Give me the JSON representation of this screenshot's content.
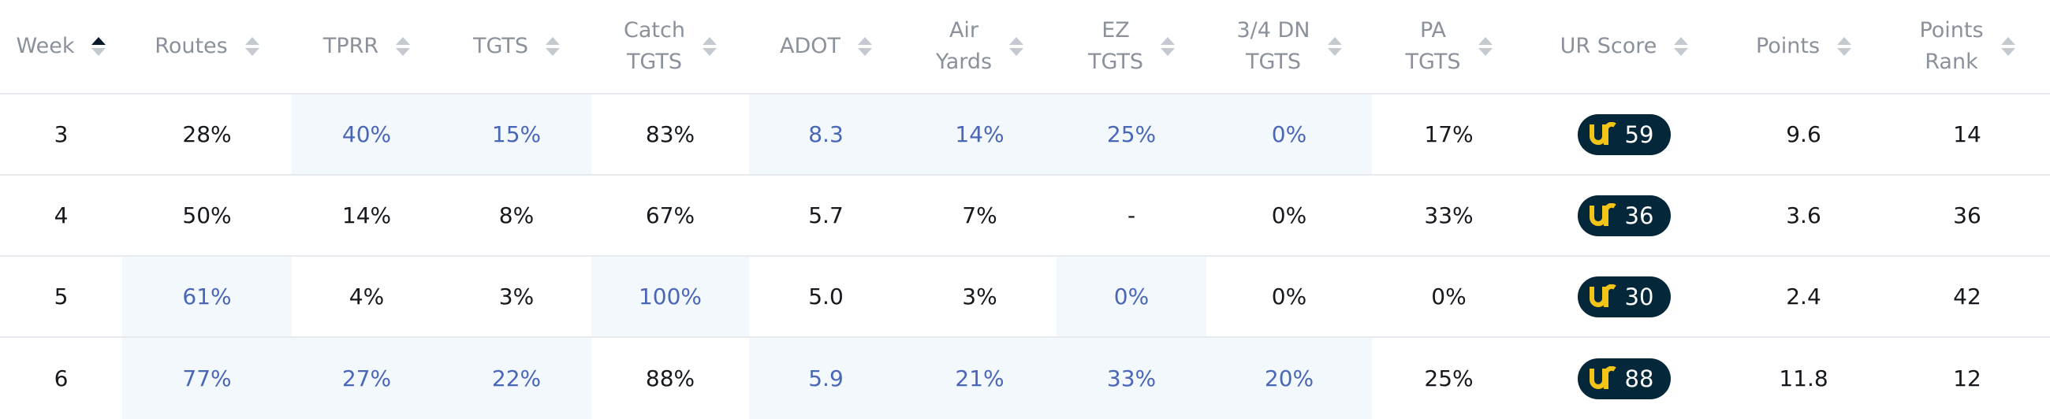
{
  "headers": [
    {
      "line1": "Week",
      "line2": ""
    },
    {
      "line1": "Routes",
      "line2": ""
    },
    {
      "line1": "TPRR",
      "line2": ""
    },
    {
      "line1": "TGTS",
      "line2": ""
    },
    {
      "line1": "Catch",
      "line2": "TGTS"
    },
    {
      "line1": "ADOT",
      "line2": ""
    },
    {
      "line1": "Air",
      "line2": "Yards"
    },
    {
      "line1": "EZ",
      "line2": "TGTS"
    },
    {
      "line1": "3/4 DN",
      "line2": "TGTS"
    },
    {
      "line1": "PA",
      "line2": "TGTS"
    },
    {
      "line1": "UR Score",
      "line2": ""
    },
    {
      "line1": "Points",
      "line2": ""
    },
    {
      "line1": "Points",
      "line2": "Rank"
    }
  ],
  "rows": [
    {
      "week": "3",
      "routes": "28%",
      "tprr": "40%",
      "tgts": "15%",
      "catch": "83%",
      "adot": "8.3",
      "air": "14%",
      "ez": "25%",
      "dn": "0%",
      "pa": "17%",
      "score": "59",
      "points": "9.6",
      "rank": "14"
    },
    {
      "week": "4",
      "routes": "50%",
      "tprr": "14%",
      "tgts": "8%",
      "catch": "67%",
      "adot": "5.7",
      "air": "7%",
      "ez": "-",
      "dn": "0%",
      "pa": "33%",
      "score": "36",
      "points": "3.6",
      "rank": "36"
    },
    {
      "week": "5",
      "routes": "61%",
      "tprr": "4%",
      "tgts": "3%",
      "catch": "100%",
      "adot": "5.0",
      "air": "3%",
      "ez": "0%",
      "dn": "0%",
      "pa": "0%",
      "score": "30",
      "points": "2.4",
      "rank": "42"
    },
    {
      "week": "6",
      "routes": "77%",
      "tprr": "27%",
      "tgts": "22%",
      "catch": "88%",
      "adot": "5.9",
      "air": "21%",
      "ez": "33%",
      "dn": "20%",
      "pa": "25%",
      "score": "88",
      "points": "11.8",
      "rank": "12"
    }
  ],
  "colors": {
    "highlight_bg": "#f3f8fd",
    "highlight_text": "#4a67b6",
    "badge_bg": "#05273a",
    "badge_logo": "#f2c418"
  },
  "icons": {
    "sort": "sort-arrows-icon",
    "logo": "ur-logo-icon"
  }
}
